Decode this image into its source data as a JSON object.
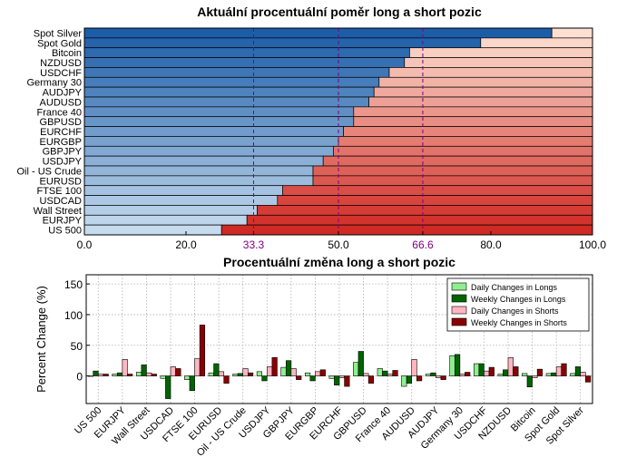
{
  "chart_data": [
    {
      "type": "bar",
      "orientation": "horizontal",
      "stacked": true,
      "title": "Aktuální procentuální poměr long a short pozic",
      "categories": [
        "Spot Silver",
        "Spot Gold",
        "Bitcoin",
        "NZDUSD",
        "USDCHF",
        "Germany 30",
        "AUDJPY",
        "AUDUSD",
        "France 40",
        "GBPUSD",
        "EURCHF",
        "EURGBP",
        "GBPJPY",
        "USDJPY",
        "Oil - US Crude",
        "EURUSD",
        "FTSE 100",
        "USDCAD",
        "Wall Street",
        "EURJPY",
        "US 500"
      ],
      "series": [
        {
          "values": [
            92,
            78,
            64,
            63,
            60,
            58,
            57,
            56,
            53,
            53,
            51,
            50,
            49,
            47,
            45,
            45,
            39,
            38,
            34,
            32,
            27
          ]
        },
        {
          "values": [
            8,
            22,
            36,
            37,
            40,
            42,
            43,
            44,
            47,
            47,
            49,
            50,
            51,
            53,
            55,
            55,
            61,
            62,
            66,
            68,
            73
          ]
        }
      ],
      "xlim": [
        0,
        100
      ],
      "xticks": [
        "0.0",
        "20.0",
        "33.3",
        "50.0",
        "66.6",
        "80.0",
        "100.0"
      ],
      "reference_lines": [
        33.3,
        50.0,
        66.6
      ],
      "grid": false,
      "colors": {
        "long_dark": "#1c5da8",
        "long_light": "#c6dbef",
        "short_light": "#fde0d2",
        "short_dark": "#d02a24",
        "reference": "#800080"
      }
    },
    {
      "type": "bar",
      "title": "Procentuální změna long a short pozic",
      "ylabel": "Percent Change (%)",
      "ylim": [
        -45,
        165
      ],
      "yticks": [
        0,
        50,
        100,
        150
      ],
      "grid": true,
      "legend_position": "top-right",
      "categories": [
        "US 500",
        "EURJPY",
        "Wall Street",
        "USDCAD",
        "FTSE 100",
        "EURUSD",
        "Oil - US Crude",
        "USDJPY",
        "GBPJPY",
        "EURGBP",
        "EURCHF",
        "GBPUSD",
        "France 40",
        "AUDUSD",
        "AUDJPY",
        "Germany 30",
        "USDCHF",
        "NZDUSD",
        "Bitcoin",
        "Spot Gold",
        "Spot Silver"
      ],
      "series": [
        {
          "name": "Daily Changes in Longs",
          "color": "#90ee90",
          "values": [
            0,
            3,
            6,
            -4,
            -6,
            5,
            3,
            7,
            14,
            5,
            -4,
            22,
            12,
            -17,
            3,
            33,
            20,
            3,
            4,
            4,
            4
          ]
        },
        {
          "name": "Weekly Changes in Longs",
          "color": "#006400",
          "values": [
            8,
            5,
            18,
            -37,
            -24,
            20,
            4,
            -8,
            25,
            -8,
            -15,
            40,
            8,
            -12,
            5,
            35,
            20,
            10,
            -18,
            5,
            15
          ]
        },
        {
          "name": "Daily Changes in Shorts",
          "color": "#ffb6c1",
          "values": [
            3,
            27,
            5,
            15,
            28,
            7,
            12,
            15,
            12,
            7,
            -3,
            4,
            3,
            27,
            -3,
            3,
            8,
            30,
            -3,
            15,
            6
          ]
        },
        {
          "name": "Weekly Changes in Shorts",
          "color": "#8b0000",
          "values": [
            3,
            3,
            3,
            12,
            83,
            -12,
            5,
            30,
            -6,
            10,
            -17,
            -12,
            9,
            -8,
            -6,
            6,
            14,
            15,
            11,
            20,
            -10
          ]
        }
      ]
    }
  ]
}
